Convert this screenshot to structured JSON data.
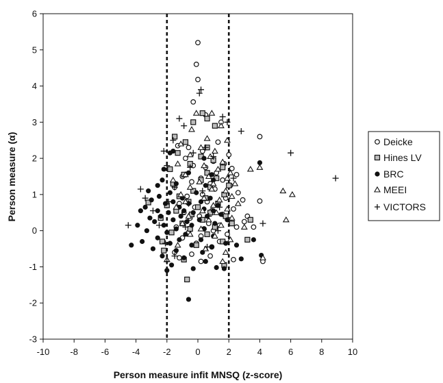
{
  "chart_data": {
    "type": "scatter",
    "title": "",
    "xlabel": "Person measure infit MNSQ (z-score)",
    "ylabel": "Person measure (α)",
    "xlim": [
      -10,
      10
    ],
    "ylim": [
      -3,
      6
    ],
    "x_ticks": [
      -10,
      -8,
      -6,
      -4,
      -2,
      0,
      2,
      4,
      6,
      8,
      10
    ],
    "y_ticks": [
      -3,
      -2,
      -1,
      0,
      1,
      2,
      3,
      4,
      5,
      6
    ],
    "grid": false,
    "legend_position": "right",
    "reference_lines": [
      {
        "axis": "x",
        "value": -2,
        "style": "dashed"
      },
      {
        "axis": "x",
        "value": 2,
        "style": "dashed"
      }
    ],
    "series": [
      {
        "name": "Deicke",
        "marker": "open-circle",
        "points": [
          [
            0,
            5.2
          ],
          [
            -0.1,
            4.6
          ],
          [
            0,
            4.18
          ],
          [
            -0.3,
            3.56
          ],
          [
            0.5,
            3.2
          ],
          [
            1.5,
            3.0
          ],
          [
            4,
            2.6
          ],
          [
            1.3,
            2.45
          ],
          [
            -1.3,
            2.35
          ],
          [
            -0.6,
            2.3
          ],
          [
            0.3,
            2.2
          ],
          [
            2,
            2.1
          ],
          [
            -0.8,
            2.0
          ],
          [
            1.0,
            1.92
          ],
          [
            1.7,
            1.85
          ],
          [
            -0.3,
            1.8
          ],
          [
            0.5,
            1.75
          ],
          [
            2.2,
            1.72
          ],
          [
            1.2,
            1.6
          ],
          [
            2.5,
            1.55
          ],
          [
            -1.0,
            1.5
          ],
          [
            0.2,
            1.45
          ],
          [
            1.6,
            1.4
          ],
          [
            -0.4,
            1.35
          ],
          [
            0.8,
            1.3
          ],
          [
            2.1,
            1.25
          ],
          [
            -1.5,
            1.2
          ],
          [
            1.1,
            1.15
          ],
          [
            2.6,
            1.05
          ],
          [
            0.3,
            1.0
          ],
          [
            -0.7,
            0.95
          ],
          [
            1.8,
            0.9
          ],
          [
            2.9,
            0.85
          ],
          [
            4,
            0.82
          ],
          [
            0.6,
            0.8
          ],
          [
            -1.2,
            0.75
          ],
          [
            1.3,
            0.7
          ],
          [
            -0.2,
            0.65
          ],
          [
            2.3,
            0.6
          ],
          [
            0.9,
            0.55
          ],
          [
            -0.9,
            0.5
          ],
          [
            1.6,
            0.45
          ],
          [
            0.1,
            0.4
          ],
          [
            3.2,
            0.4
          ],
          [
            -0.5,
            0.35
          ],
          [
            2.0,
            0.3
          ],
          [
            3.0,
            0.25
          ],
          [
            0.7,
            0.2
          ],
          [
            1.4,
            0.15
          ],
          [
            -1.4,
            0.1
          ],
          [
            2.5,
            0.1
          ],
          [
            3.6,
            0.1
          ],
          [
            0.4,
            0.05
          ],
          [
            1.0,
            0.0
          ],
          [
            -0.6,
            -0.05
          ],
          [
            1.9,
            -0.1
          ],
          [
            0.2,
            -0.15
          ],
          [
            -1.0,
            -0.2
          ],
          [
            1.4,
            -0.3
          ],
          [
            -0.1,
            -0.35
          ],
          [
            0.9,
            -0.45
          ],
          [
            -1.5,
            -0.6
          ],
          [
            -0.4,
            -0.65
          ],
          [
            0.8,
            -0.7
          ],
          [
            -1.2,
            -0.75
          ],
          [
            0.2,
            -0.85
          ],
          [
            2.3,
            -0.8
          ],
          [
            4.2,
            -0.85
          ]
        ]
      },
      {
        "name": "Hines LV",
        "marker": "hatched-square",
        "points": [
          [
            0.3,
            3.25
          ],
          [
            0.6,
            3.1
          ],
          [
            -0.3,
            3.0
          ],
          [
            1.1,
            2.9
          ],
          [
            -1.5,
            2.6
          ],
          [
            -0.8,
            2.45
          ],
          [
            0.6,
            2.3
          ],
          [
            -1.3,
            2.15
          ],
          [
            0.2,
            2.05
          ],
          [
            1.0,
            1.95
          ],
          [
            -0.5,
            1.85
          ],
          [
            1.6,
            1.75
          ],
          [
            -1.8,
            1.7
          ],
          [
            0.6,
            1.6
          ],
          [
            -0.9,
            1.55
          ],
          [
            1.2,
            1.45
          ],
          [
            0.2,
            1.4
          ],
          [
            -1.6,
            1.3
          ],
          [
            2.0,
            1.25
          ],
          [
            0.8,
            1.2
          ],
          [
            -0.3,
            1.1
          ],
          [
            -3.2,
            0.78
          ],
          [
            1.7,
            1.0
          ],
          [
            -1.2,
            0.95
          ],
          [
            0.5,
            0.9
          ],
          [
            -0.6,
            0.8
          ],
          [
            1.3,
            0.75
          ],
          [
            -2.0,
            0.7
          ],
          [
            0.0,
            0.65
          ],
          [
            -1.4,
            0.55
          ],
          [
            0.8,
            0.5
          ],
          [
            -0.4,
            0.45
          ],
          [
            1.8,
            0.4
          ],
          [
            -2.4,
            0.35
          ],
          [
            0.3,
            0.3
          ],
          [
            -1.0,
            0.2
          ],
          [
            2.2,
            0.2
          ],
          [
            1.1,
            0.1
          ],
          [
            -0.5,
            0.05
          ],
          [
            3.4,
            0.3
          ],
          [
            -1.7,
            -0.05
          ],
          [
            0.6,
            -0.1
          ],
          [
            -2.3,
            -0.3
          ],
          [
            1.6,
            -0.3
          ],
          [
            -0.1,
            -0.4
          ],
          [
            3.2,
            -0.25
          ],
          [
            -2.2,
            -0.55
          ],
          [
            -0.9,
            -0.8
          ],
          [
            1.7,
            -0.95
          ],
          [
            -0.7,
            -1.35
          ]
        ]
      },
      {
        "name": "BRC",
        "marker": "filled-circle",
        "points": [
          [
            4,
            1.88
          ],
          [
            -1.6,
            2.2
          ],
          [
            -1.8,
            2.15
          ],
          [
            0.4,
            2.0
          ],
          [
            -2.2,
            1.7
          ],
          [
            -0.6,
            1.6
          ],
          [
            0.9,
            1.55
          ],
          [
            -2.3,
            1.4
          ],
          [
            1.0,
            1.4
          ],
          [
            -1.4,
            1.3
          ],
          [
            -2.6,
            1.25
          ],
          [
            0.5,
            1.25
          ],
          [
            -3.2,
            1.1
          ],
          [
            -1.8,
            1.05
          ],
          [
            -0.1,
            1.05
          ],
          [
            -2.5,
            0.95
          ],
          [
            -1.0,
            0.9
          ],
          [
            0.8,
            0.9
          ],
          [
            -3.0,
            0.85
          ],
          [
            -1.6,
            0.8
          ],
          [
            0.2,
            0.8
          ],
          [
            -2.1,
            0.75
          ],
          [
            -0.6,
            0.75
          ],
          [
            1.3,
            0.7
          ],
          [
            -3.4,
            0.65
          ],
          [
            -1.2,
            0.65
          ],
          [
            0.4,
            0.6
          ],
          [
            -2.6,
            0.55
          ],
          [
            -0.9,
            0.55
          ],
          [
            1.0,
            0.55
          ],
          [
            -3.7,
            0.55
          ],
          [
            -1.9,
            0.5
          ],
          [
            -0.3,
            0.5
          ],
          [
            1.5,
            0.45
          ],
          [
            -2.4,
            0.4
          ],
          [
            -1.1,
            0.4
          ],
          [
            0.6,
            0.4
          ],
          [
            -3.1,
            0.35
          ],
          [
            -1.6,
            0.3
          ],
          [
            0.1,
            0.3
          ],
          [
            1.9,
            0.3
          ],
          [
            -2.8,
            0.25
          ],
          [
            -0.7,
            0.25
          ],
          [
            1.1,
            0.2
          ],
          [
            -3.9,
            0.15
          ],
          [
            -2.2,
            0.15
          ],
          [
            -0.4,
            0.15
          ],
          [
            -1.4,
            0.05
          ],
          [
            0.4,
            0.05
          ],
          [
            -3.3,
            0.0
          ],
          [
            -2.0,
            -0.05
          ],
          [
            -0.8,
            -0.1
          ],
          [
            1.0,
            -0.15
          ],
          [
            -2.6,
            -0.2
          ],
          [
            -1.2,
            -0.25
          ],
          [
            0.2,
            -0.25
          ],
          [
            -3.6,
            -0.3
          ],
          [
            -1.8,
            -0.35
          ],
          [
            -0.4,
            -0.4
          ],
          [
            0.9,
            -0.45
          ],
          [
            -2.9,
            -0.5
          ],
          [
            -1.4,
            -0.55
          ],
          [
            0.3,
            -0.6
          ],
          [
            -2.3,
            -0.7
          ],
          [
            -0.9,
            -0.75
          ],
          [
            0.5,
            -0.85
          ],
          [
            -1.7,
            -0.95
          ],
          [
            -2.0,
            -1.1
          ],
          [
            -0.3,
            -1.05
          ],
          [
            1.8,
            -0.35
          ],
          [
            2.5,
            -0.4
          ],
          [
            1.7,
            -1.05
          ],
          [
            1.2,
            -1.02
          ],
          [
            3.6,
            -0.25
          ],
          [
            2.8,
            -0.78
          ],
          [
            4.1,
            -0.68
          ],
          [
            -4.3,
            -0.4
          ],
          [
            -0.6,
            -1.9
          ]
        ]
      },
      {
        "name": "MEEI",
        "marker": "open-triangle",
        "points": [
          [
            5.5,
            1.1
          ],
          [
            6.1,
            1.0
          ],
          [
            5.7,
            0.3
          ],
          [
            -0.1,
            3.25
          ],
          [
            0.9,
            3.25
          ],
          [
            1.5,
            2.9
          ],
          [
            -0.4,
            2.8
          ],
          [
            0.6,
            2.55
          ],
          [
            1.9,
            2.5
          ],
          [
            -1.1,
            2.4
          ],
          [
            0.2,
            2.3
          ],
          [
            1.1,
            2.2
          ],
          [
            -0.5,
            2.1
          ],
          [
            0.8,
            2.05
          ],
          [
            1.6,
            1.9
          ],
          [
            -1.3,
            1.85
          ],
          [
            0.4,
            1.8
          ],
          [
            1.3,
            1.7
          ],
          [
            3.4,
            1.7
          ],
          [
            2.1,
            1.6
          ],
          [
            -0.8,
            1.55
          ],
          [
            0.7,
            1.5
          ],
          [
            1.9,
            1.45
          ],
          [
            4.0,
            1.75
          ],
          [
            -1.6,
            1.4
          ],
          [
            0.1,
            1.35
          ],
          [
            1.0,
            1.3
          ],
          [
            2.4,
            1.3
          ],
          [
            -0.5,
            1.2
          ],
          [
            0.9,
            1.15
          ],
          [
            1.8,
            1.1
          ],
          [
            -1.1,
            1.0
          ],
          [
            2.2,
            0.95
          ],
          [
            0.4,
            0.9
          ],
          [
            1.4,
            0.85
          ],
          [
            -0.8,
            0.8
          ],
          [
            2.6,
            0.75
          ],
          [
            1.0,
            0.7
          ],
          [
            -1.4,
            0.65
          ],
          [
            1.9,
            0.6
          ],
          [
            0.3,
            0.55
          ],
          [
            1.2,
            0.5
          ],
          [
            -0.6,
            0.4
          ],
          [
            2.2,
            0.35
          ],
          [
            0.7,
            0.3
          ],
          [
            -1.0,
            0.2
          ],
          [
            1.5,
            0.15
          ],
          [
            3.0,
            0.1
          ],
          [
            0.2,
            0.05
          ],
          [
            -0.5,
            -0.1
          ],
          [
            1.1,
            -0.15
          ],
          [
            2.1,
            -0.25
          ],
          [
            -1.3,
            -0.4
          ],
          [
            0.5,
            -0.5
          ],
          [
            1.8,
            -0.6
          ],
          [
            1.6,
            -0.85
          ],
          [
            -2.0,
            -0.8
          ],
          [
            4.2,
            -0.75
          ]
        ]
      },
      {
        "name": "VICTORS",
        "marker": "plus",
        "points": [
          [
            8.9,
            1.45
          ],
          [
            6,
            2.15
          ],
          [
            2.8,
            2.75
          ],
          [
            0.2,
            3.9
          ],
          [
            0.1,
            3.8
          ],
          [
            1.6,
            3.15
          ],
          [
            1.9,
            3.0
          ],
          [
            -1.2,
            3.1
          ],
          [
            -0.9,
            2.9
          ],
          [
            -2.2,
            2.2
          ],
          [
            -1.6,
            2.5
          ],
          [
            0.5,
            2.3
          ],
          [
            -0.3,
            2.15
          ],
          [
            1.0,
            2.05
          ],
          [
            -2.0,
            1.8
          ],
          [
            -0.5,
            1.75
          ],
          [
            2.3,
            1.45
          ],
          [
            -3.7,
            1.15
          ],
          [
            -1.5,
            1.2
          ],
          [
            0.3,
            1.1
          ],
          [
            -3.4,
            0.9
          ],
          [
            -1.9,
            0.8
          ],
          [
            -0.6,
            0.75
          ],
          [
            1.4,
            0.65
          ],
          [
            -2.9,
            0.55
          ],
          [
            -1.0,
            0.45
          ],
          [
            0.7,
            0.4
          ],
          [
            -4.5,
            0.15
          ],
          [
            -2.5,
            0.15
          ],
          [
            -0.8,
            0.1
          ],
          [
            1.3,
            0.0
          ],
          [
            4.2,
            0.2
          ],
          [
            -2.1,
            -0.35
          ],
          [
            0.6,
            -0.45
          ],
          [
            -1.5,
            -0.7
          ],
          [
            -2.0,
            -0.85
          ]
        ]
      }
    ]
  }
}
